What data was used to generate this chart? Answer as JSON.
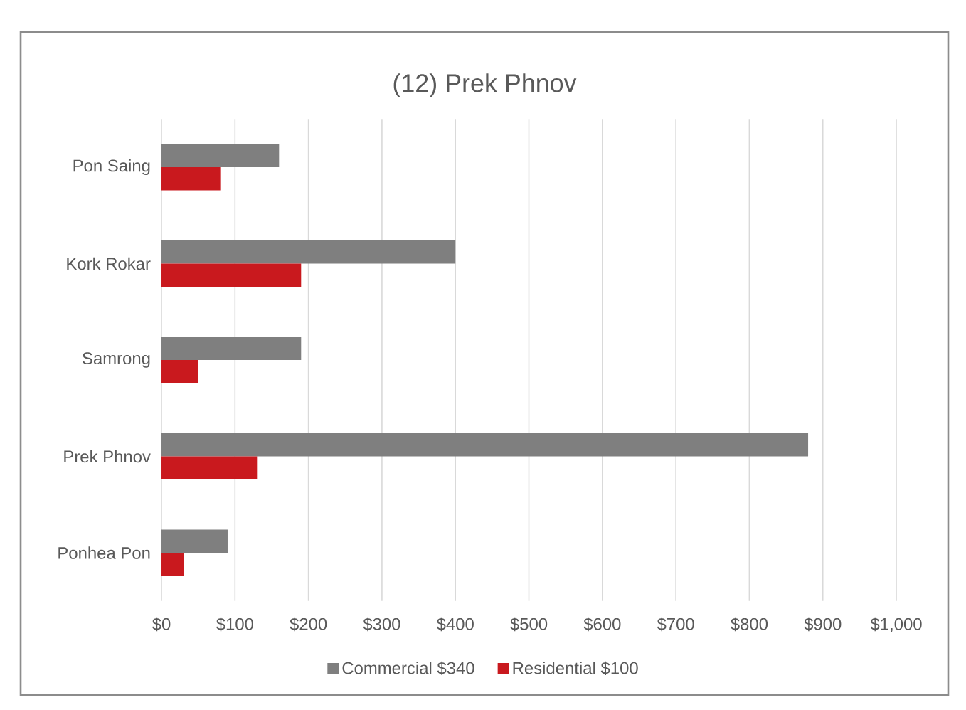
{
  "chart_data": {
    "type": "bar",
    "orientation": "horizontal",
    "title": "(12) Prek Phnov",
    "categories": [
      "Pon Saing",
      "Kork Rokar",
      "Samrong",
      "Prek Phnov",
      "Ponhea Pon"
    ],
    "series": [
      {
        "name": "Commercial $340",
        "color": "#7f7f7f",
        "values": [
          160,
          400,
          190,
          880,
          90
        ]
      },
      {
        "name": "Residential $100",
        "color": "#c9191e",
        "values": [
          80,
          190,
          50,
          130,
          30
        ]
      }
    ],
    "xlim": [
      0,
      1000
    ],
    "xticks": [
      {
        "value": 0,
        "label": "$0"
      },
      {
        "value": 100,
        "label": "$100"
      },
      {
        "value": 200,
        "label": "$200"
      },
      {
        "value": 300,
        "label": "$300"
      },
      {
        "value": 400,
        "label": "$400"
      },
      {
        "value": 500,
        "label": "$500"
      },
      {
        "value": 600,
        "label": "$600"
      },
      {
        "value": 700,
        "label": "$700"
      },
      {
        "value": 800,
        "label": "$800"
      },
      {
        "value": 900,
        "label": "$900"
      },
      {
        "value": 1000,
        "label": "$1,000"
      }
    ],
    "grid": "x",
    "legend": "bottom"
  }
}
